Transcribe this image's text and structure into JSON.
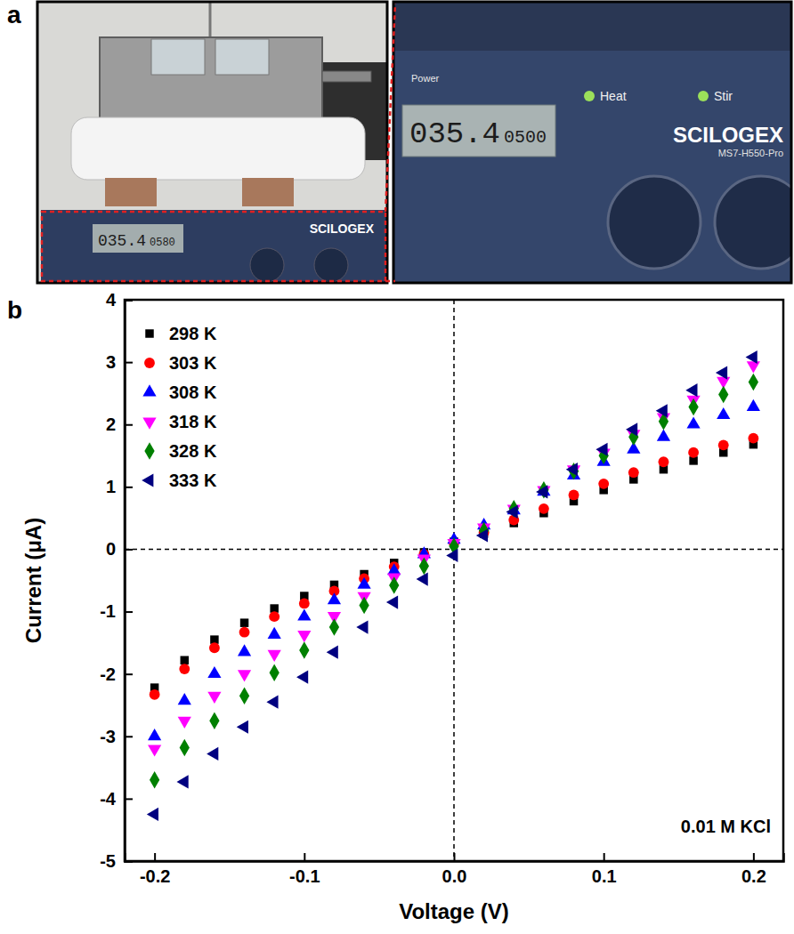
{
  "panel_letters": [
    "a",
    "b"
  ],
  "photo": {
    "left": {
      "display": "035.4",
      "display_small": "0580",
      "brand": "SCILOGEX"
    },
    "right": {
      "display": "035.4",
      "display_small": "0500",
      "brand": "SCILOGEX",
      "model": "MS7-H550-Pro",
      "heat": "Heat",
      "stir": "Stir",
      "power": "Power"
    }
  },
  "chart_data": {
    "type": "scatter",
    "x_label": "Voltage (V)",
    "y_label": "Current (μA)",
    "annotation": "0.01 M KCl",
    "x": [
      -0.2,
      -0.18,
      -0.16,
      -0.14,
      -0.12,
      -0.1,
      -0.08,
      -0.06,
      -0.04,
      -0.02,
      0,
      0.02,
      0.04,
      0.06,
      0.08,
      0.1,
      0.12,
      0.14,
      0.16,
      0.18,
      0.2
    ],
    "series": [
      {
        "name": "298 K",
        "color": "#000000",
        "marker": "square",
        "values": [
          -2.22,
          -1.78,
          -1.45,
          -1.18,
          -0.95,
          -0.75,
          -0.57,
          -0.4,
          -0.22,
          -0.05,
          0.12,
          0.25,
          0.42,
          0.58,
          0.77,
          0.95,
          1.12,
          1.28,
          1.42,
          1.55,
          1.68
        ]
      },
      {
        "name": "303 K",
        "color": "#ff0000",
        "marker": "circle",
        "values": [
          -2.33,
          -1.92,
          -1.58,
          -1.33,
          -1.08,
          -0.87,
          -0.67,
          -0.47,
          -0.28,
          -0.08,
          0.1,
          0.27,
          0.47,
          0.65,
          0.87,
          1.05,
          1.23,
          1.4,
          1.55,
          1.67,
          1.78
        ]
      },
      {
        "name": "308 K",
        "color": "#0000ff",
        "marker": "triangle-up",
        "values": [
          -3.0,
          -2.43,
          -2.0,
          -1.65,
          -1.37,
          -1.08,
          -0.82,
          -0.57,
          -0.35,
          -0.08,
          0.15,
          0.38,
          0.62,
          0.92,
          1.18,
          1.4,
          1.6,
          1.8,
          2.0,
          2.15,
          2.28
        ]
      },
      {
        "name": "318 K",
        "color": "#ff00ff",
        "marker": "triangle-down",
        "values": [
          -3.2,
          -2.75,
          -2.35,
          -2.0,
          -1.68,
          -1.37,
          -1.07,
          -0.75,
          -0.45,
          -0.15,
          0.1,
          0.35,
          0.65,
          0.95,
          1.28,
          1.55,
          1.85,
          2.12,
          2.4,
          2.7,
          2.95
        ]
      },
      {
        "name": "328 K",
        "color": "#008000",
        "marker": "diamond",
        "values": [
          -3.7,
          -3.18,
          -2.75,
          -2.35,
          -1.98,
          -1.62,
          -1.25,
          -0.9,
          -0.58,
          -0.27,
          0.05,
          0.3,
          0.65,
          0.95,
          1.25,
          1.5,
          1.8,
          2.05,
          2.28,
          2.48,
          2.68
        ]
      },
      {
        "name": "333 K",
        "color": "#000080",
        "marker": "triangle-left",
        "values": [
          -4.25,
          -3.73,
          -3.28,
          -2.85,
          -2.45,
          -2.05,
          -1.65,
          -1.25,
          -0.85,
          -0.48,
          -0.1,
          0.22,
          0.6,
          0.92,
          1.28,
          1.6,
          1.92,
          2.22,
          2.55,
          2.83,
          3.08
        ]
      }
    ],
    "xlim": [
      -0.22,
      0.22
    ],
    "xticks": [
      -0.2,
      -0.1,
      {
        "value": 0,
        "label": "0.0"
      },
      0.1,
      0.2
    ],
    "ylim": [
      -5,
      4
    ],
    "yticks": [
      -5,
      -4,
      -3,
      -2,
      -1,
      0,
      1,
      2,
      3,
      4
    ],
    "ref_lines": {
      "x": [
        0
      ],
      "y": [
        0
      ]
    },
    "legend": "upper left",
    "grid": false
  }
}
